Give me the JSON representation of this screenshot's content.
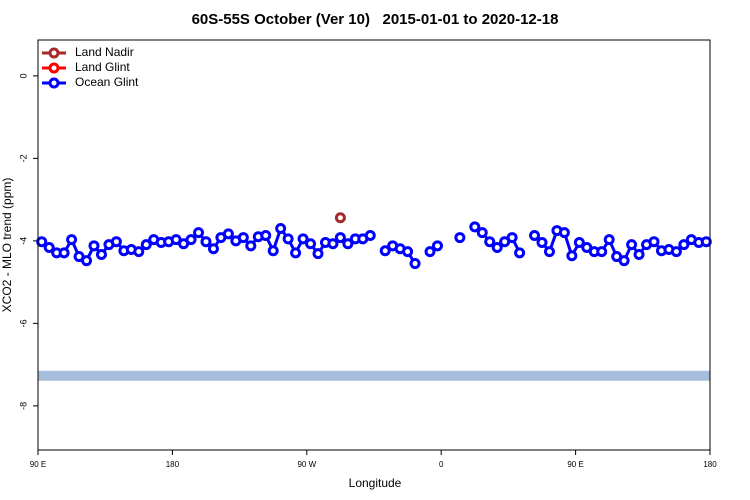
{
  "chart_data": {
    "type": "line",
    "title": "60S-55S October (Ver 10)   2015-01-01 to 2020-12-18",
    "xlabel": "Longitude",
    "ylabel": "XCO2 - MLO trend (ppm)",
    "xlim": [
      90,
      540
    ],
    "xticks": [
      {
        "value": 90,
        "label": "90 E"
      },
      180,
      {
        "value": 270,
        "label": "90 W"
      },
      {
        "value": 360,
        "label": "0"
      },
      {
        "value": 450,
        "label": "90 E"
      },
      {
        "value": 540,
        "label": "180"
      }
    ],
    "ylim": [
      -9.07,
      0.87
    ],
    "yticks": [
      0,
      -2,
      -4,
      -6,
      -8
    ],
    "legend": "top-left",
    "bands": [
      {
        "value": -7.27,
        "color": "#a6bddb"
      }
    ],
    "series": [
      {
        "name": "Land Nadir",
        "color": "#a52a2a",
        "x": [
          292.5
        ],
        "values": [
          -3.44
        ]
      },
      {
        "name": "Land Glint",
        "color": "#ff0000",
        "x": [],
        "values": []
      },
      {
        "name": "Ocean Glint",
        "color": "#0000ff",
        "x": [
          92.5,
          97.5,
          102.5,
          107.5,
          112.5,
          117.5,
          122.5,
          127.5,
          132.5,
          137.5,
          142.5,
          147.5,
          152.5,
          157.5,
          162.5,
          167.5,
          172.5,
          177.5,
          182.5,
          187.5,
          192.5,
          197.5,
          202.5,
          207.5,
          212.5,
          217.5,
          222.5,
          227.5,
          232.5,
          237.5,
          242.5,
          247.5,
          252.5,
          257.5,
          262.5,
          267.5,
          272.5,
          277.5,
          282.5,
          287.5,
          292.5,
          297.5,
          302.5,
          307.5,
          312.5,
          317.5,
          322.5,
          327.5,
          332.5,
          337.5,
          342.5,
          347.5,
          352.5,
          357.5,
          362.5,
          367.5,
          372.5,
          377.5,
          382.5,
          387.5,
          392.5,
          397.5,
          402.5,
          407.5,
          412.5,
          417.5,
          422.5,
          427.5,
          432.5,
          437.5,
          442.5,
          447.5,
          452.5,
          457.5,
          462.5,
          467.5,
          472.5,
          477.5,
          482.5,
          487.5,
          492.5,
          497.5,
          502.5,
          507.5,
          512.5,
          517.5,
          522.5,
          527.5,
          532.5,
          537.5
        ],
        "values": [
          -4.02,
          -4.16,
          -4.29,
          -4.29,
          -3.97,
          -4.38,
          -4.48,
          -4.12,
          -4.33,
          -4.09,
          -4.02,
          -4.24,
          -4.21,
          -4.26,
          -4.09,
          -3.97,
          -4.04,
          -4.02,
          -3.97,
          -4.07,
          -3.97,
          -3.8,
          -4.02,
          -4.19,
          -3.92,
          -3.83,
          -4.0,
          -3.92,
          -4.12,
          -3.9,
          -3.87,
          -4.24,
          -3.7,
          -3.95,
          -4.29,
          -3.95,
          -4.07,
          -4.31,
          -4.04,
          -4.07,
          -3.92,
          -4.07,
          -3.95,
          -3.95,
          -3.87,
          null,
          -4.24,
          -4.12,
          -4.19,
          -4.26,
          -4.55,
          null,
          -4.26,
          -4.12,
          null,
          null,
          -3.92,
          null,
          -3.66,
          -3.8,
          -4.02,
          -4.16,
          -4.02,
          -3.92,
          -4.29,
          null,
          -3.87,
          -4.04,
          -4.26,
          -3.75,
          -3.8,
          -4.36,
          -4.04,
          -4.16,
          -4.26,
          -4.26,
          -3.97,
          -4.38,
          -4.48,
          -4.09,
          -4.33,
          -4.09,
          -4.02,
          -4.24,
          -4.21,
          -4.26,
          -4.09,
          -3.97,
          -4.04,
          -4.02
        ]
      }
    ]
  }
}
